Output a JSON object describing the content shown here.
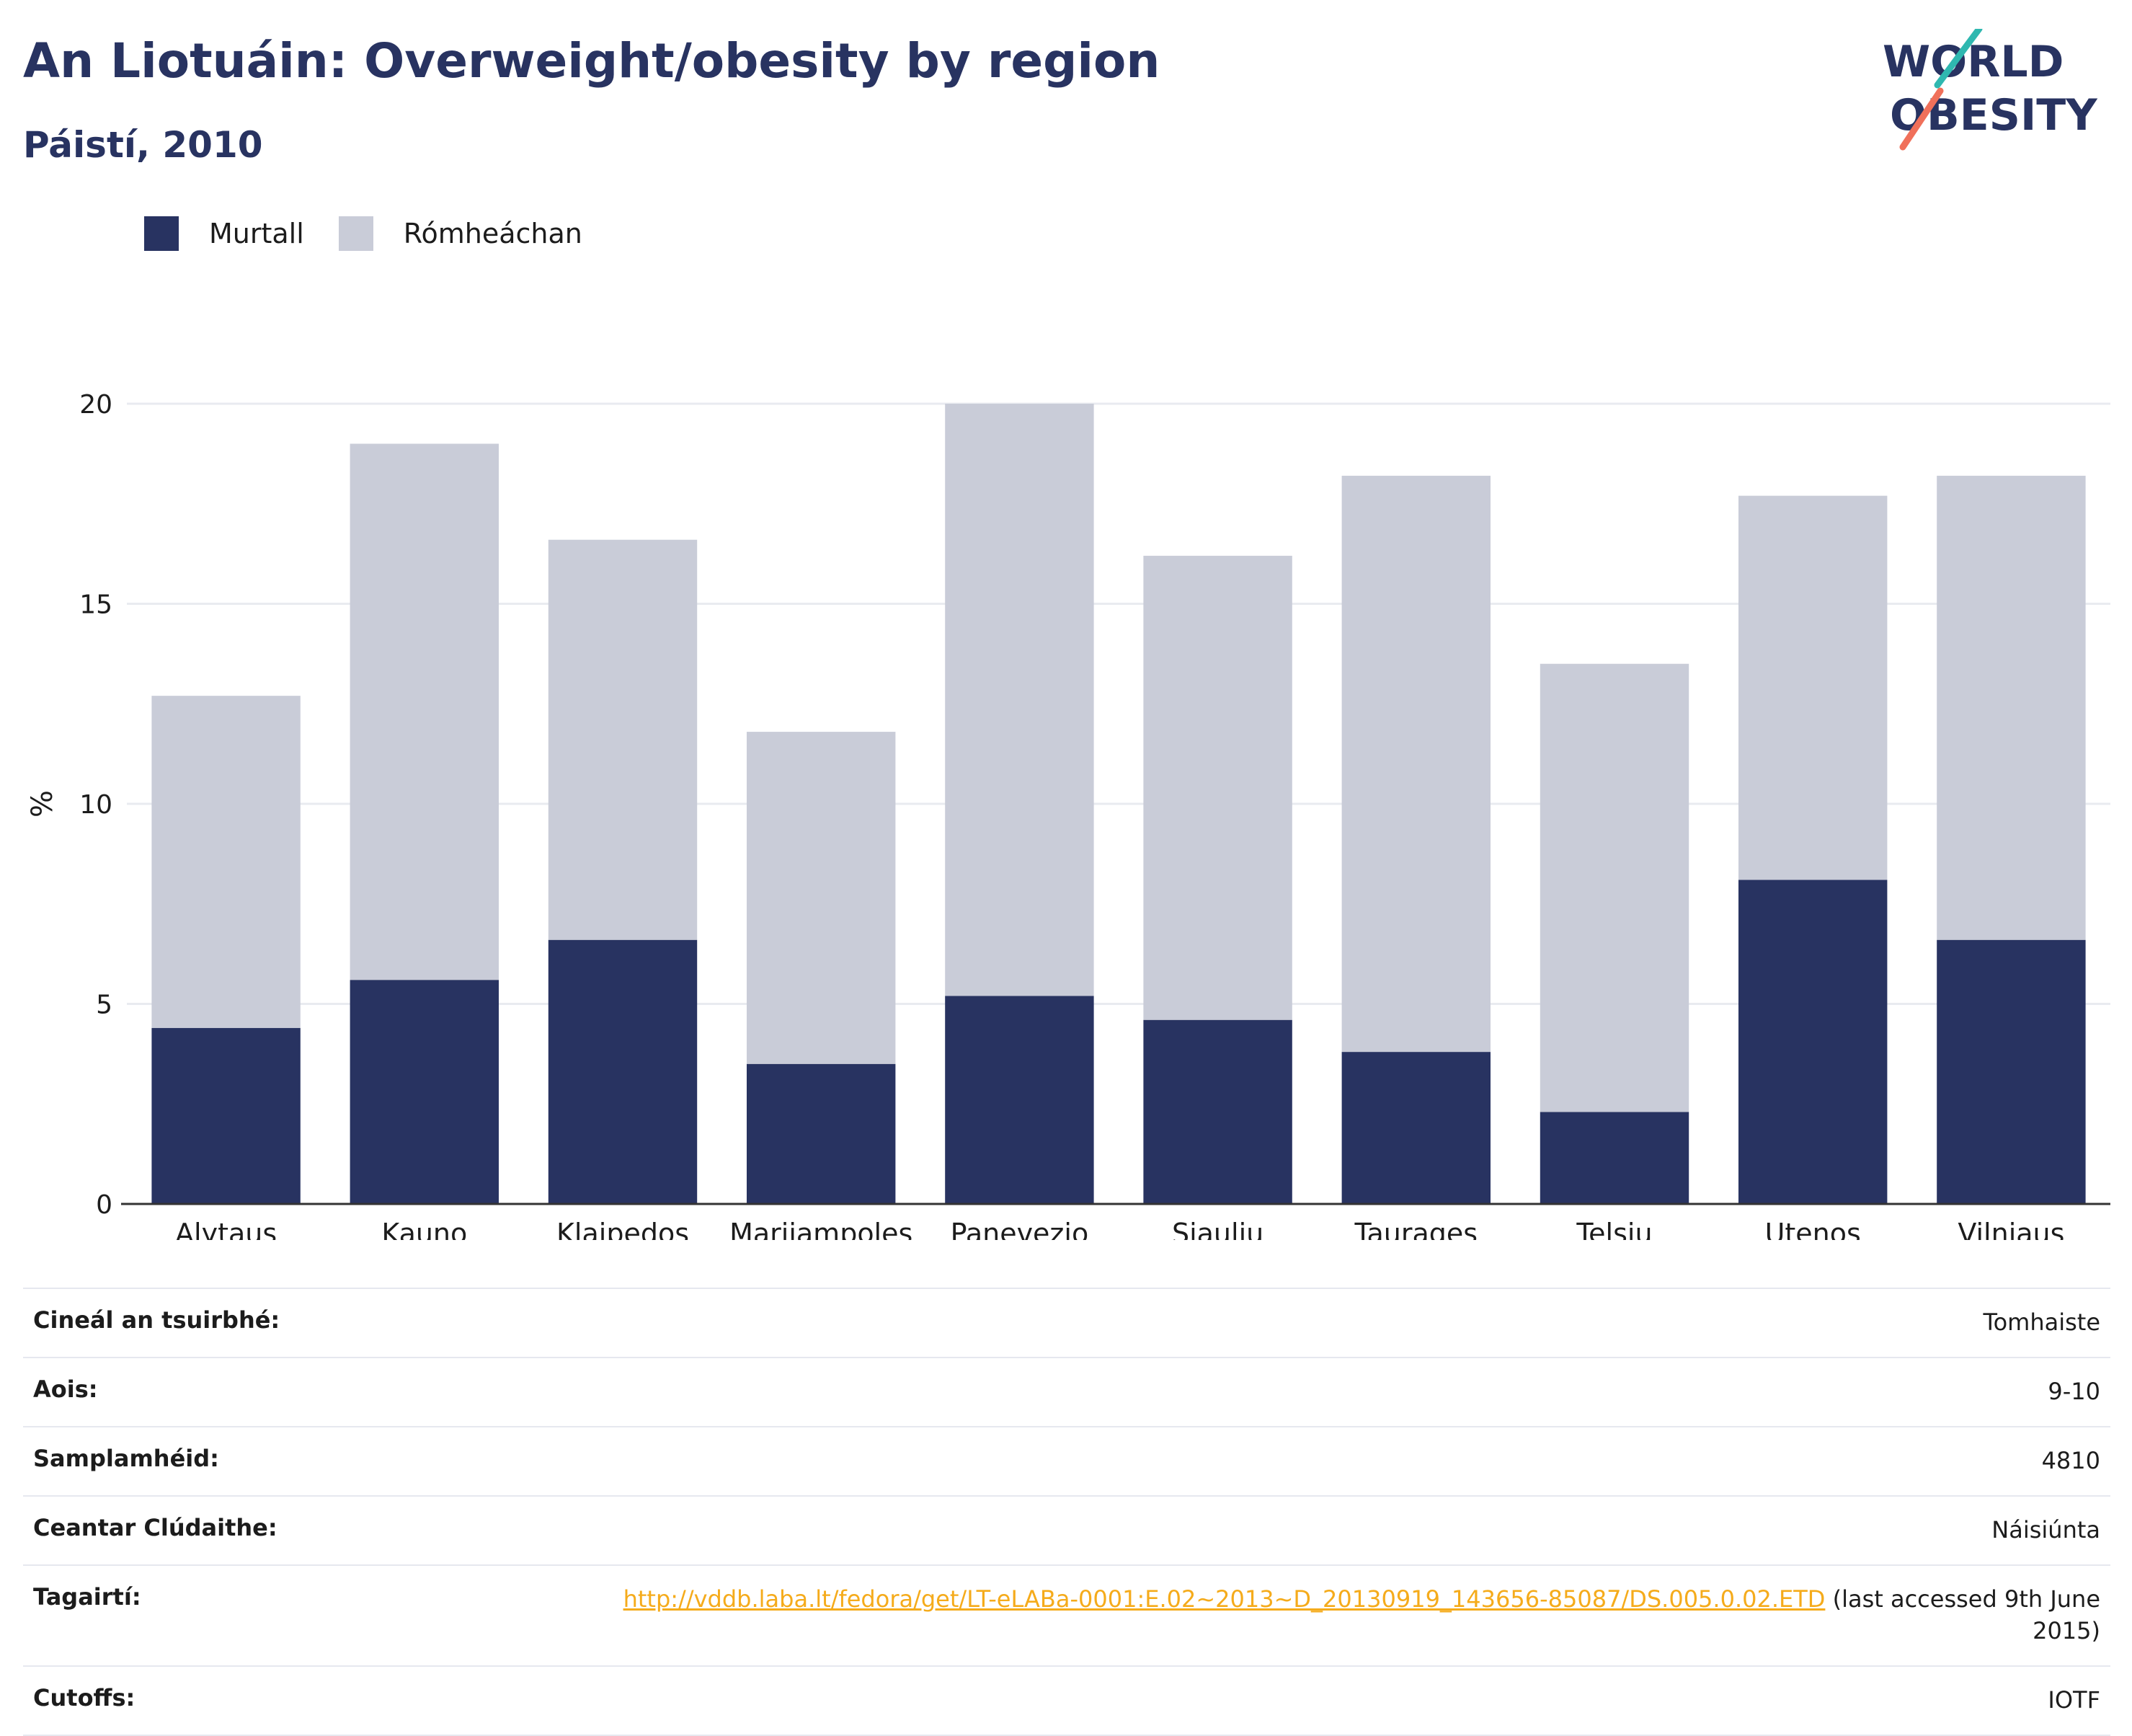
{
  "header": {
    "title": "An Liotuáin: Overweight/obesity by region",
    "subtitle": "Páistí, 2010"
  },
  "logo": {
    "line1": "WORLD",
    "line2": "OBESITY",
    "colors": {
      "navy": "#283361",
      "teal": "#2fb8b0",
      "coral": "#f0705a"
    }
  },
  "legend": [
    {
      "label": "Murtall",
      "color": "#283361"
    },
    {
      "label": "Rómheáchan",
      "color": "#c9ccd8"
    }
  ],
  "chart_data": {
    "type": "bar",
    "stacked": true,
    "categories": [
      "Alytaus",
      "Kauno",
      "Klaipedos",
      "Marijampoles",
      "Panevezio",
      "Siauliu",
      "Taurages",
      "Telsiu",
      "Utenos",
      "Vilniaus"
    ],
    "series": [
      {
        "name": "Murtall",
        "color": "#283361",
        "values": [
          4.4,
          5.6,
          6.6,
          3.5,
          5.2,
          4.6,
          3.8,
          2.3,
          8.1,
          6.6
        ]
      },
      {
        "name": "Rómheáchan",
        "color": "#c9ccd8",
        "values": [
          8.3,
          13.4,
          10.0,
          8.3,
          14.8,
          11.6,
          14.4,
          11.2,
          9.6,
          11.6
        ]
      }
    ],
    "ylabel": "%",
    "ylim": [
      0,
      20
    ],
    "yticks": [
      0,
      5,
      10,
      15,
      20
    ],
    "grid": true,
    "legend_position": "top-left"
  },
  "info": [
    {
      "key": "Cineál an tsuirbhé:",
      "value": "Tomhaiste"
    },
    {
      "key": "Aois:",
      "value": "9-10"
    },
    {
      "key": "Samplamhéid:",
      "value": "4810"
    },
    {
      "key": "Ceantar Clúdaithe:",
      "value": "Náisiúnta"
    }
  ],
  "reference": {
    "key": "Tagairtí:",
    "link": "http://vddb.laba.lt/fedora/get/LT-eLABa-0001:E.02~2013~D_20130919_143656-85087/DS.005.0.02.ETD",
    "suffix": " (last accessed 9th June 2015)"
  },
  "cutoffs": {
    "key": "Cutoffs:",
    "value": "IOTF"
  }
}
